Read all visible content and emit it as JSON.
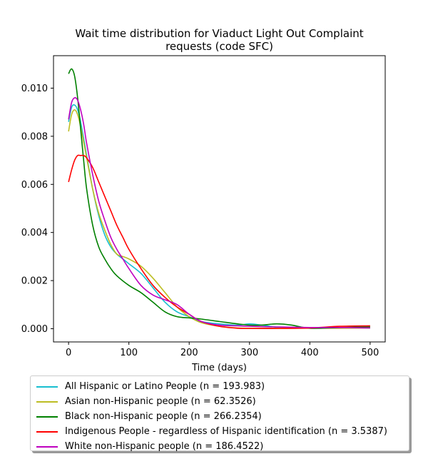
{
  "chart_data": {
    "type": "line",
    "title_lines": [
      "Wait time distribution  for Viaduct Light Out Complaint",
      "requests (code SFC)"
    ],
    "xlabel": "Time (days)",
    "ylabel": "",
    "xlim": [
      -25,
      525
    ],
    "ylim": [
      -0.00055,
      0.01135
    ],
    "x_ticks": [
      0,
      100,
      200,
      300,
      400,
      500
    ],
    "x_tick_labels": [
      "0",
      "100",
      "200",
      "300",
      "400",
      "500"
    ],
    "y_ticks": [
      0.0,
      0.002,
      0.004,
      0.006,
      0.008,
      0.01
    ],
    "y_tick_labels": [
      "0.000",
      "0.002",
      "0.004",
      "0.006",
      "0.008",
      "0.010"
    ],
    "grid": false,
    "legend_position": "below",
    "series": [
      {
        "name": "All Hispanic or Latino People (n = 193.983)",
        "color": "#17becf",
        "x": [
          0,
          5,
          10,
          15,
          20,
          30,
          40,
          50,
          60,
          70,
          80,
          90,
          100,
          120,
          140,
          160,
          180,
          200,
          220,
          250,
          280,
          300,
          320,
          350,
          380,
          400,
          450,
          500
        ],
        "y": [
          0.0086,
          0.0092,
          0.0093,
          0.0091,
          0.0086,
          0.0072,
          0.0058,
          0.0047,
          0.0039,
          0.0034,
          0.0031,
          0.0029,
          0.0027,
          0.0023,
          0.0017,
          0.0011,
          0.0007,
          0.0005,
          0.0003,
          0.0002,
          0.00015,
          0.0002,
          0.00015,
          5e-05,
          3e-05,
          3e-05,
          5e-05,
          3e-05
        ]
      },
      {
        "name": "Asian non-Hispanic people (n = 62.3526)",
        "color": "#bcbd22",
        "x": [
          0,
          5,
          10,
          15,
          20,
          30,
          40,
          50,
          60,
          70,
          80,
          90,
          100,
          120,
          140,
          160,
          180,
          200,
          220,
          250,
          280,
          300,
          350,
          400,
          450,
          500
        ],
        "y": [
          0.0082,
          0.0089,
          0.0091,
          0.0089,
          0.0084,
          0.0071,
          0.0058,
          0.0048,
          0.0041,
          0.0035,
          0.0031,
          0.003,
          0.0029,
          0.0026,
          0.0021,
          0.0015,
          0.0009,
          0.0005,
          0.00025,
          0.0001,
          3e-05,
          2e-05,
          2e-05,
          2e-05,
          2e-05,
          3e-05
        ]
      },
      {
        "name": "Black non-Hispanic people (n = 266.2354)",
        "color": "#008000",
        "x": [
          0,
          5,
          10,
          15,
          20,
          25,
          30,
          40,
          50,
          60,
          70,
          80,
          100,
          120,
          140,
          160,
          180,
          200,
          220,
          250,
          280,
          300,
          320,
          345,
          370,
          400,
          450,
          500
        ],
        "y": [
          0.0106,
          0.0108,
          0.0105,
          0.0096,
          0.0083,
          0.007,
          0.0058,
          0.0043,
          0.0034,
          0.0029,
          0.0025,
          0.0022,
          0.0018,
          0.0015,
          0.0011,
          0.0007,
          0.0005,
          0.00045,
          0.0004,
          0.0003,
          0.0002,
          0.00015,
          0.00015,
          0.0002,
          0.00015,
          2e-05,
          5e-05,
          8e-05
        ]
      },
      {
        "name": "Indigenous People - regardless of Hispanic identification (n = 3.5387)",
        "color": "#ff0000",
        "x": [
          0,
          5,
          10,
          15,
          20,
          25,
          30,
          40,
          50,
          60,
          70,
          80,
          90,
          100,
          120,
          140,
          160,
          180,
          200,
          220,
          250,
          280,
          300,
          350,
          400,
          450,
          500
        ],
        "y": [
          0.0061,
          0.0066,
          0.007,
          0.0072,
          0.0072,
          0.0072,
          0.0071,
          0.0067,
          0.0061,
          0.0055,
          0.0049,
          0.0043,
          0.0038,
          0.0033,
          0.0025,
          0.0018,
          0.0013,
          0.0009,
          0.0006,
          0.0003,
          0.0001,
          2e-05,
          1e-05,
          1e-05,
          3e-05,
          0.0001,
          0.00012
        ]
      },
      {
        "name": "White non-Hispanic people (n = 186.4522)",
        "color": "#bf00bf",
        "x": [
          0,
          5,
          10,
          15,
          20,
          25,
          30,
          40,
          50,
          60,
          70,
          80,
          90,
          100,
          120,
          140,
          160,
          180,
          200,
          220,
          250,
          280,
          300,
          350,
          400,
          450,
          500
        ],
        "y": [
          0.0087,
          0.0094,
          0.0096,
          0.0095,
          0.0091,
          0.0085,
          0.0077,
          0.0064,
          0.0053,
          0.0045,
          0.0038,
          0.0033,
          0.0029,
          0.0025,
          0.0018,
          0.0014,
          0.0012,
          0.001,
          0.0006,
          0.0003,
          0.00015,
          0.00012,
          0.0001,
          7e-05,
          5e-05,
          5e-05,
          3e-05
        ]
      }
    ]
  }
}
